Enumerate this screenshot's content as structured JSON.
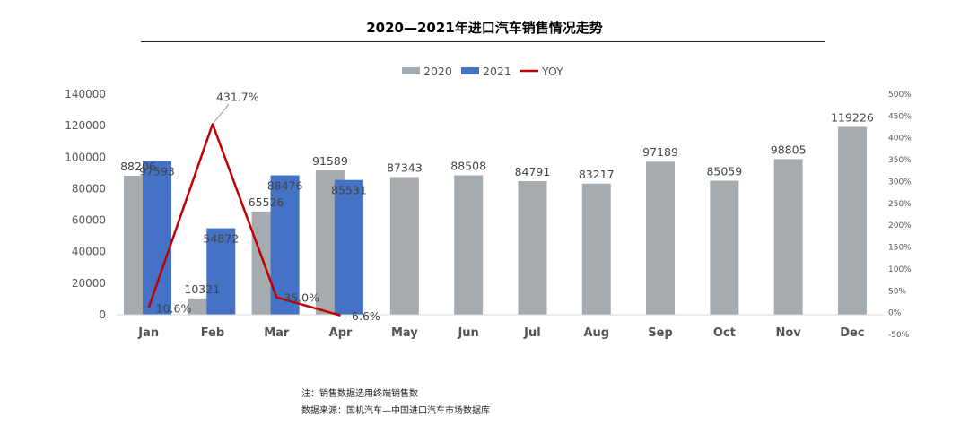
{
  "title": "2020—2021年进口汽车销售情况走势",
  "notes": {
    "line1": "注：销售数据选用终端销售数",
    "line2": "数据来源：国机汽车—中国进口汽车市场数据库"
  },
  "chart_data": {
    "type": "bar",
    "categories": [
      "Jan",
      "Feb",
      "Mar",
      "Apr",
      "May",
      "Jun",
      "Jul",
      "Aug",
      "Sep",
      "Oct",
      "Nov",
      "Dec"
    ],
    "series": [
      {
        "name": "2020",
        "kind": "bar",
        "color": "#a6abb0",
        "values": [
          88206,
          10321,
          65526,
          91589,
          87343,
          88508,
          84791,
          83217,
          97189,
          85059,
          98805,
          119226
        ]
      },
      {
        "name": "2021",
        "kind": "bar",
        "color": "#4472c4",
        "values": [
          97593,
          54872,
          88476,
          85531,
          null,
          null,
          null,
          null,
          null,
          null,
          null,
          null
        ]
      },
      {
        "name": "YOY",
        "kind": "line",
        "axis": "right",
        "color": "#c00000",
        "values": [
          10.6,
          431.7,
          35.0,
          -6.6,
          null,
          null,
          null,
          null,
          null,
          null,
          null,
          null
        ],
        "labels": [
          "10.6%",
          "431.7%",
          "35.0%",
          "-6.6%"
        ]
      }
    ],
    "ylim": [
      0,
      140000
    ],
    "yticks": [
      "0",
      "20000",
      "40000",
      "60000",
      "80000",
      "100000",
      "120000",
      "140000"
    ],
    "y2lim": [
      -50,
      500
    ],
    "y2ticks": [
      "-50%",
      "0%",
      "50%",
      "100%",
      "150%",
      "200%",
      "250%",
      "300%",
      "350%",
      "400%",
      "450%",
      "500%"
    ],
    "legend_position": "top",
    "grid": false
  }
}
